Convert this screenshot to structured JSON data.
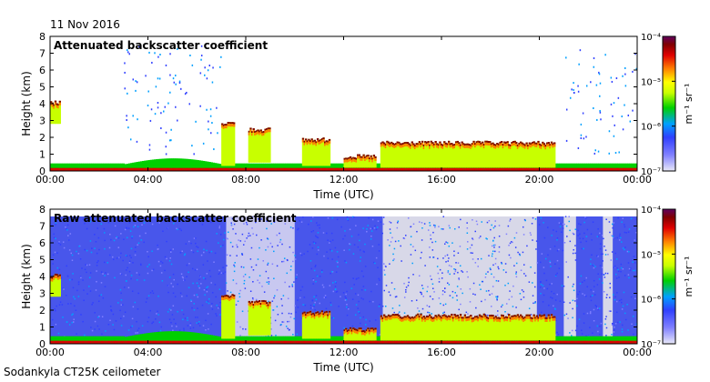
{
  "date": "11 Nov 2016",
  "source": "Sodankyla CT25K ceilometer",
  "chart_data": [
    {
      "type": "heatmap",
      "title": "Attenuated backscatter coefficient",
      "xlabel": "Time (UTC)",
      "ylabel": "Height (km)",
      "x_ticks": [
        "00:00",
        "04:00",
        "08:00",
        "12:00",
        "16:00",
        "20:00",
        "00:00"
      ],
      "xlim": [
        0,
        24
      ],
      "y_ticks": [
        "0",
        "1",
        "2",
        "3",
        "4",
        "5",
        "6",
        "7",
        "8"
      ],
      "ylim": [
        0,
        8
      ],
      "colorbar": {
        "label": "m⁻¹ sr⁻¹",
        "scale": "log",
        "ticks": [
          "10⁻⁷",
          "10⁻⁶",
          "10⁻⁵",
          "10⁻⁴"
        ],
        "range": [
          1e-07,
          0.0001
        ]
      },
      "noise_background": false
    },
    {
      "type": "heatmap",
      "title": "Raw attenuated backscatter coefficient",
      "xlabel": "Time (UTC)",
      "ylabel": "Height (km)",
      "x_ticks": [
        "00:00",
        "04:00",
        "08:00",
        "12:00",
        "16:00",
        "20:00",
        "00:00"
      ],
      "xlim": [
        0,
        24
      ],
      "y_ticks": [
        "0",
        "1",
        "2",
        "3",
        "4",
        "5",
        "6",
        "7",
        "8"
      ],
      "ylim": [
        0,
        8
      ],
      "colorbar": {
        "label": "m⁻¹ sr⁻¹",
        "scale": "log",
        "ticks": [
          "10⁻⁷",
          "10⁻⁶",
          "10⁻⁵",
          "10⁻⁴"
        ],
        "range": [
          1e-07,
          0.0001
        ]
      },
      "noise_background": true
    }
  ],
  "features": {
    "cloud_layers": [
      {
        "t0": 0.0,
        "t1": 0.4,
        "base": 2.8,
        "top": 4.2
      },
      {
        "t0": 7.0,
        "t1": 7.5,
        "base": 0.3,
        "top": 3.0
      },
      {
        "t0": 8.1,
        "t1": 9.0,
        "base": 0.5,
        "top": 2.6
      },
      {
        "t0": 10.3,
        "t1": 11.4,
        "base": 0.3,
        "top": 2.0
      },
      {
        "t0": 12.0,
        "t1": 13.3,
        "base": 0.2,
        "top": 1.0
      },
      {
        "t0": 13.5,
        "t1": 20.6,
        "base": 0.2,
        "top": 1.8
      }
    ],
    "boundary_layer_top_km": 0.4
  },
  "colors": {
    "low": "#c8c8f0",
    "scale": [
      "#e8e8f8",
      "#3040ff",
      "#00a0ff",
      "#00d000",
      "#c8ff00",
      "#ffff00",
      "#ff8000",
      "#e00000",
      "#800000",
      "#600060"
    ],
    "noise_bg": "#d8d8e8"
  }
}
